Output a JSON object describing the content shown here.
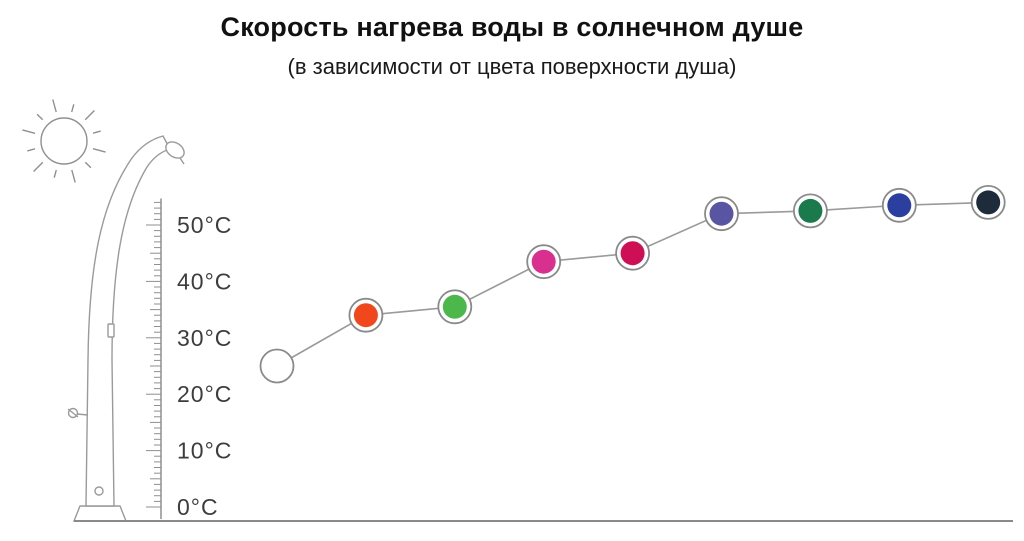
{
  "title": "Скорость нагрева воды в солнечном душе",
  "subtitle": "(в зависимости от цвета поверхности душа)",
  "axis": {
    "y_ticks": [
      50,
      40,
      30,
      20,
      10,
      0
    ],
    "y_tick_labels": [
      "50°C",
      "40°C",
      "30°C",
      "20°C",
      "10°C",
      "0°C"
    ]
  },
  "chart_data": {
    "type": "line",
    "title": "Скорость нагрева воды в солнечном душе",
    "subtitle": "(в зависимости от цвета поверхности душа)",
    "xlabel": "",
    "ylabel": "",
    "ylim": [
      0,
      55
    ],
    "grid": false,
    "legend": "none",
    "line_color": "#9a9a9a",
    "marker_ring_color": "#8a8a8a",
    "points": [
      {
        "name": "white",
        "color": "#ffffff",
        "value": 25
      },
      {
        "name": "orange-red",
        "color": "#f1471d",
        "value": 34
      },
      {
        "name": "green",
        "color": "#4cb84c",
        "value": 35.5
      },
      {
        "name": "magenta",
        "color": "#d9308f",
        "value": 43.5
      },
      {
        "name": "crimson",
        "color": "#ce0f55",
        "value": 45
      },
      {
        "name": "violet",
        "color": "#5a55a2",
        "value": 52
      },
      {
        "name": "dark-green",
        "color": "#1b7a4b",
        "value": 52.5
      },
      {
        "name": "blue",
        "color": "#2b3fa0",
        "value": 53.5
      },
      {
        "name": "dark-navy",
        "color": "#1d2b3a",
        "value": 54
      }
    ]
  }
}
